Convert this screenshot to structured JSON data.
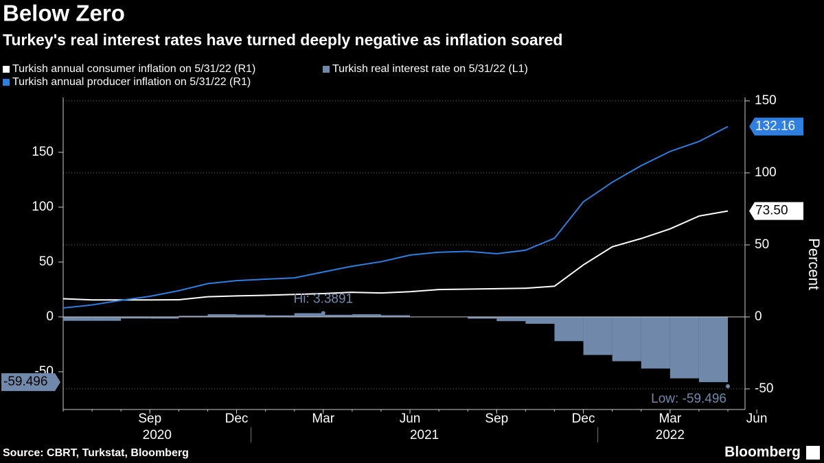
{
  "chart_data": {
    "type": "line",
    "title": "Below Zero",
    "subtitle": "Turkey's real interest rates have turned deeply negative as inflation soared",
    "source": "Source: CBRT, Turkstat, Bloomberg",
    "brand": "Bloomberg",
    "y2_label": "Percent",
    "x": [
      "2020-06",
      "2020-07",
      "2020-08",
      "2020-09",
      "2020-10",
      "2020-11",
      "2020-12",
      "2021-01",
      "2021-02",
      "2021-03",
      "2021-04",
      "2021-05",
      "2021-06",
      "2021-07",
      "2021-08",
      "2021-09",
      "2021-10",
      "2021-11",
      "2021-12",
      "2022-01",
      "2022-02",
      "2022-03",
      "2022-04",
      "2022-05"
    ],
    "xticks": [
      {
        "value": "2020-09",
        "label": "Sep"
      },
      {
        "value": "2020-12",
        "label": "Dec"
      },
      {
        "value": "2021-03",
        "label": "Mar"
      },
      {
        "value": "2021-06",
        "label": "Jun"
      },
      {
        "value": "2021-09",
        "label": "Sep"
      },
      {
        "value": "2021-12",
        "label": "Dec"
      },
      {
        "value": "2022-03",
        "label": "Mar"
      },
      {
        "value": "2022-06",
        "label": "Jun"
      }
    ],
    "x_years": [
      "2020",
      "2021",
      "2022"
    ],
    "ylim": [
      -84.4,
      200
    ],
    "yticks": [
      -50,
      0,
      50,
      100,
      150
    ],
    "y2lim": [
      -64.3,
      152.4
    ],
    "y2ticks": [
      -50,
      0,
      50,
      100,
      150
    ],
    "grid": true,
    "series": [
      {
        "name": "Turkish annual consumer inflation on 5/31/22 (R1)",
        "color": "#ffffff",
        "axis": "y2",
        "kind": "line",
        "values": [
          12.6,
          11.8,
          11.8,
          11.8,
          11.9,
          14.0,
          14.6,
          15.0,
          15.6,
          16.2,
          17.1,
          16.6,
          17.5,
          19.0,
          19.3,
          19.6,
          19.9,
          21.3,
          36.1,
          48.7,
          54.4,
          61.1,
          70.0,
          73.5
        ],
        "value_labels": [
          null,
          null,
          null,
          null,
          null,
          null,
          null,
          null,
          null,
          null,
          null,
          null,
          null,
          null,
          null,
          null,
          null,
          null,
          null,
          null,
          null,
          null,
          null,
          "73.50"
        ]
      },
      {
        "name": "Turkish real interest rate on 5/31/22 (L1)",
        "color": "#7089ab",
        "axis": "y",
        "kind": "area",
        "values": [
          -4.4,
          -3.6,
          -3.6,
          -1.5,
          -1.6,
          1.0,
          2.4,
          2.0,
          1.4,
          3.3891,
          1.9,
          2.4,
          1.5,
          0,
          -0.3,
          -1.6,
          -3.9,
          -6.3,
          -22.1,
          -34.7,
          -40.4,
          -47.1,
          -56.0,
          -59.496
        ]
      },
      {
        "name": "Turkish annual producer inflation on 5/31/22 (R1)",
        "color": "#2f7fe0",
        "axis": "y2",
        "kind": "line",
        "values": [
          6.2,
          8.3,
          11.5,
          14.3,
          18.2,
          23.1,
          25.2,
          26.2,
          27.1,
          31.2,
          35.2,
          38.3,
          42.9,
          44.9,
          45.5,
          43.9,
          46.3,
          54.6,
          79.9,
          93.5,
          105.0,
          114.9,
          121.8,
          132.16
        ]
      }
    ],
    "annotations": [
      {
        "text": "Hi: 3.3891"
      },
      {
        "text": "Low: -59.496"
      }
    ]
  }
}
